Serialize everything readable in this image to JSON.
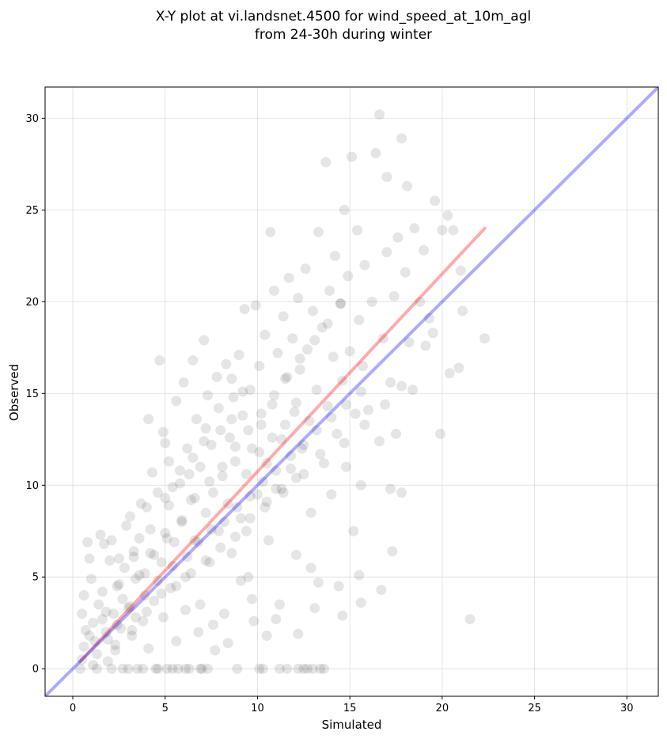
{
  "chart_data": {
    "type": "scatter",
    "title_lines": [
      "X-Y plot at vi.landsnet.4500 for wind_speed_at_10m_agl",
      "from 24-30h during winter"
    ],
    "xlabel": "Simulated",
    "ylabel": "Observed",
    "xlim": [
      -1.5,
      31.7
    ],
    "ylim": [
      -1.5,
      31.7
    ],
    "xticks": [
      0,
      5,
      10,
      15,
      20,
      25,
      30
    ],
    "yticks": [
      0,
      5,
      10,
      15,
      20,
      25,
      30
    ],
    "grid": true,
    "legend": "none",
    "point_color": "#000000",
    "point_opacity": 0.1,
    "series": [
      {
        "points": [
          [
            0.5,
            0.5
          ],
          [
            0.6,
            1.2
          ],
          [
            0.7,
            2.1
          ],
          [
            0.5,
            3.0
          ],
          [
            0.6,
            4.0
          ],
          [
            0.8,
            6.9
          ],
          [
            0.9,
            6.0
          ],
          [
            1.0,
            4.9
          ],
          [
            1.1,
            2.5
          ],
          [
            1.2,
            1.5
          ],
          [
            1.3,
            0.8
          ],
          [
            1.4,
            3.5
          ],
          [
            1.5,
            7.3
          ],
          [
            1.6,
            4.2
          ],
          [
            1.7,
            6.8
          ],
          [
            1.8,
            2.0
          ],
          [
            1.9,
            0.4
          ],
          [
            2.0,
            5.9
          ],
          [
            2.1,
            7.0
          ],
          [
            2.2,
            3.0
          ],
          [
            2.3,
            1.0
          ],
          [
            2.4,
            4.5
          ],
          [
            2.5,
            6.0
          ],
          [
            2.6,
            2.2
          ],
          [
            2.7,
            0.0
          ],
          [
            2.8,
            5.5
          ],
          [
            2.9,
            7.8
          ],
          [
            3.0,
            3.3
          ],
          [
            3.1,
            8.3
          ],
          [
            3.2,
            1.8
          ],
          [
            3.3,
            6.4
          ],
          [
            3.4,
            4.9
          ],
          [
            3.5,
            0.0
          ],
          [
            3.6,
            7.1
          ],
          [
            3.7,
            9.0
          ],
          [
            3.8,
            2.6
          ],
          [
            3.9,
            5.2
          ],
          [
            4.0,
            8.8
          ],
          [
            4.1,
            13.6
          ],
          [
            4.2,
            6.3
          ],
          [
            4.3,
            10.7
          ],
          [
            4.4,
            3.7
          ],
          [
            4.5,
            0.0
          ],
          [
            4.6,
            9.6
          ],
          [
            4.7,
            16.8
          ],
          [
            4.8,
            5.8
          ],
          [
            4.9,
            12.9
          ],
          [
            5.0,
            7.4
          ],
          [
            5.0,
            12.3
          ],
          [
            5.1,
            0.0
          ],
          [
            5.2,
            11.3
          ],
          [
            5.3,
            4.4
          ],
          [
            5.4,
            9.9
          ],
          [
            5.5,
            6.9
          ],
          [
            5.6,
            14.6
          ],
          [
            5.7,
            0.0
          ],
          [
            5.8,
            10.8
          ],
          [
            5.9,
            8.0
          ],
          [
            6.0,
            15.6
          ],
          [
            6.1,
            3.2
          ],
          [
            6.2,
            12.0
          ],
          [
            6.3,
            0.0
          ],
          [
            6.4,
            9.2
          ],
          [
            6.5,
            16.8
          ],
          [
            6.6,
            7.0
          ],
          [
            6.7,
            13.6
          ],
          [
            6.8,
            2.0
          ],
          [
            6.9,
            11.0
          ],
          [
            7.0,
            0.0
          ],
          [
            7.1,
            17.9
          ],
          [
            7.2,
            8.5
          ],
          [
            7.3,
            14.9
          ],
          [
            7.4,
            5.8
          ],
          [
            7.5,
            12.2
          ],
          [
            7.6,
            9.6
          ],
          [
            7.7,
            1.0
          ],
          [
            7.8,
            15.9
          ],
          [
            7.9,
            7.5
          ],
          [
            8.0,
            13.0
          ],
          [
            8.1,
            10.5
          ],
          [
            8.2,
            3.0
          ],
          [
            8.3,
            16.6
          ],
          [
            8.4,
            9.0
          ],
          [
            8.5,
            12.6
          ],
          [
            8.6,
            6.3
          ],
          [
            8.7,
            14.8
          ],
          [
            8.8,
            11.3
          ],
          [
            8.9,
            0.0
          ],
          [
            9.0,
            17.1
          ],
          [
            9.1,
            8.2
          ],
          [
            9.2,
            13.8
          ],
          [
            9.3,
            19.6
          ],
          [
            9.4,
            10.6
          ],
          [
            9.5,
            5.0
          ],
          [
            9.6,
            15.2
          ],
          [
            9.7,
            12.0
          ],
          [
            9.8,
            2.6
          ],
          [
            9.9,
            19.8
          ],
          [
            10.0,
            9.5
          ],
          [
            10.1,
            16.5
          ],
          [
            10.2,
            13.3
          ],
          [
            10.3,
            0.0
          ],
          [
            10.4,
            18.2
          ],
          [
            10.5,
            11.2
          ],
          [
            10.6,
            7.0
          ],
          [
            10.7,
            23.8
          ],
          [
            10.8,
            14.4
          ],
          [
            10.9,
            20.6
          ],
          [
            11.0,
            9.8
          ],
          [
            11.1,
            17.2
          ],
          [
            11.2,
            3.5
          ],
          [
            11.3,
            12.5
          ],
          [
            11.4,
            19.2
          ],
          [
            11.5,
            15.8
          ],
          [
            11.6,
            0.0
          ],
          [
            11.7,
            21.3
          ],
          [
            11.8,
            10.9
          ],
          [
            11.9,
            18.0
          ],
          [
            12.0,
            14.0
          ],
          [
            12.1,
            6.2
          ],
          [
            12.2,
            20.2
          ],
          [
            12.3,
            16.3
          ],
          [
            12.4,
            12.0
          ],
          [
            12.5,
            0.0
          ],
          [
            12.6,
            21.8
          ],
          [
            12.7,
            17.4
          ],
          [
            12.8,
            13.5
          ],
          [
            12.9,
            8.5
          ],
          [
            13.0,
            19.5
          ],
          [
            13.1,
            3.3
          ],
          [
            13.2,
            15.2
          ],
          [
            13.3,
            23.8
          ],
          [
            13.4,
            11.7
          ],
          [
            13.5,
            18.6
          ],
          [
            13.6,
            0.0
          ],
          [
            13.7,
            27.6
          ],
          [
            13.8,
            14.3
          ],
          [
            13.9,
            20.6
          ],
          [
            14.0,
            9.5
          ],
          [
            14.1,
            17.0
          ],
          [
            14.2,
            22.5
          ],
          [
            14.3,
            12.8
          ],
          [
            14.4,
            4.5
          ],
          [
            14.5,
            19.9
          ],
          [
            14.6,
            15.7
          ],
          [
            14.7,
            25.0
          ],
          [
            14.8,
            11.0
          ],
          [
            14.9,
            21.4
          ],
          [
            15.0,
            17.3
          ],
          [
            15.1,
            27.9
          ],
          [
            15.2,
            7.5
          ],
          [
            15.3,
            13.9
          ],
          [
            15.4,
            23.9
          ],
          [
            15.5,
            19.0
          ],
          [
            15.6,
            10.0
          ],
          [
            15.7,
            16.5
          ],
          [
            15.8,
            22.0
          ],
          [
            16.0,
            14.1
          ],
          [
            16.2,
            20.0
          ],
          [
            16.4,
            28.1
          ],
          [
            16.6,
            12.4
          ],
          [
            16.6,
            30.2
          ],
          [
            16.8,
            18.0
          ],
          [
            17.0,
            22.7
          ],
          [
            17.0,
            26.8
          ],
          [
            17.2,
            15.6
          ],
          [
            17.2,
            9.8
          ],
          [
            17.3,
            6.4
          ],
          [
            17.4,
            20.3
          ],
          [
            17.5,
            12.8
          ],
          [
            17.6,
            23.5
          ],
          [
            17.8,
            28.9
          ],
          [
            17.8,
            9.6
          ],
          [
            18.0,
            21.6
          ],
          [
            18.1,
            26.3
          ],
          [
            18.2,
            17.8
          ],
          [
            18.4,
            15.2
          ],
          [
            18.5,
            24.0
          ],
          [
            18.8,
            20.0
          ],
          [
            19.0,
            22.8
          ],
          [
            19.3,
            19.1
          ],
          [
            19.5,
            18.3
          ],
          [
            19.6,
            25.5
          ],
          [
            19.9,
            12.8
          ],
          [
            20.0,
            23.9
          ],
          [
            20.3,
            24.7
          ],
          [
            20.4,
            16.1
          ],
          [
            20.6,
            23.9
          ],
          [
            20.9,
            16.4
          ],
          [
            21.0,
            21.7
          ],
          [
            21.1,
            19.5
          ],
          [
            21.5,
            2.7
          ],
          [
            22.3,
            18.0
          ],
          [
            16.7,
            4.3
          ],
          [
            15.5,
            5.1
          ],
          [
            15.6,
            3.6
          ],
          [
            14.6,
            2.9
          ],
          [
            13.3,
            4.7
          ],
          [
            12.9,
            5.5
          ],
          [
            12.2,
            1.9
          ],
          [
            11.0,
            2.7
          ],
          [
            10.5,
            1.8
          ],
          [
            9.7,
            3.8
          ],
          [
            9.1,
            4.8
          ],
          [
            8.4,
            1.4
          ],
          [
            7.6,
            2.4
          ],
          [
            6.9,
            3.5
          ],
          [
            6.1,
            5.0
          ],
          [
            5.6,
            1.5
          ],
          [
            4.9,
            2.8
          ],
          [
            4.1,
            1.1
          ],
          [
            3.4,
            2.8
          ],
          [
            2.7,
            3.8
          ],
          [
            1.9,
            1.6
          ],
          [
            1.1,
            0.2
          ],
          [
            0.4,
            0.0
          ],
          [
            1.3,
            0.0
          ],
          [
            2.1,
            0.0
          ],
          [
            3.0,
            0.0
          ],
          [
            3.8,
            0.0
          ],
          [
            4.6,
            0.0
          ],
          [
            5.4,
            0.0
          ],
          [
            6.1,
            0.0
          ],
          [
            6.9,
            0.0
          ],
          [
            7.3,
            0.0
          ],
          [
            10.1,
            0.0
          ],
          [
            11.2,
            0.0
          ],
          [
            12.2,
            0.0
          ],
          [
            12.7,
            0.0
          ],
          [
            13.0,
            0.0
          ],
          [
            13.4,
            0.0
          ],
          [
            2.4,
            2.4
          ],
          [
            3.1,
            3.4
          ],
          [
            3.9,
            4.0
          ],
          [
            4.6,
            4.8
          ],
          [
            5.4,
            5.6
          ],
          [
            6.2,
            6.1
          ],
          [
            6.8,
            6.9
          ],
          [
            7.5,
            7.6
          ],
          [
            8.2,
            8.0
          ],
          [
            8.9,
            8.8
          ],
          [
            9.6,
            9.4
          ],
          [
            10.3,
            10.2
          ],
          [
            11.0,
            10.8
          ],
          [
            11.8,
            11.6
          ],
          [
            12.5,
            12.2
          ],
          [
            13.2,
            13.0
          ],
          [
            14.0,
            13.7
          ],
          [
            14.8,
            14.4
          ],
          [
            15.6,
            15.1
          ],
          [
            4.4,
            6.2
          ],
          [
            5.1,
            7.1
          ],
          [
            5.9,
            8.1
          ],
          [
            6.6,
            9.3
          ],
          [
            7.4,
            10.2
          ],
          [
            8.1,
            11.0
          ],
          [
            8.8,
            12.1
          ],
          [
            9.5,
            13.0
          ],
          [
            10.2,
            13.9
          ],
          [
            10.9,
            14.9
          ],
          [
            11.6,
            15.9
          ],
          [
            12.3,
            16.9
          ],
          [
            13.1,
            17.9
          ],
          [
            13.8,
            18.8
          ],
          [
            14.5,
            19.9
          ],
          [
            3.6,
            5.1
          ],
          [
            5.2,
            8.9
          ],
          [
            6.3,
            10.6
          ],
          [
            7.1,
            12.4
          ],
          [
            8.6,
            13.6
          ],
          [
            9.2,
            15.1
          ],
          [
            10.1,
            11.8
          ],
          [
            10.8,
            12.6
          ],
          [
            11.5,
            13.3
          ],
          [
            12.1,
            14.5
          ],
          [
            9.4,
            7.5
          ],
          [
            10.4,
            8.8
          ],
          [
            11.4,
            9.6
          ],
          [
            12.5,
            10.6
          ],
          [
            13.6,
            11.2
          ],
          [
            14.7,
            12.3
          ],
          [
            15.8,
            13.3
          ],
          [
            16.9,
            14.4
          ],
          [
            17.8,
            15.4
          ],
          [
            19.1,
            17.6
          ],
          [
            1.8,
            3.1
          ],
          [
            2.5,
            4.6
          ],
          [
            3.3,
            6.1
          ],
          [
            4.2,
            7.6
          ],
          [
            5.0,
            9.3
          ],
          [
            5.8,
            10.1
          ],
          [
            6.5,
            11.5
          ],
          [
            7.2,
            13.1
          ],
          [
            7.9,
            14.2
          ],
          [
            8.6,
            15.8
          ],
          [
            0.9,
            1.8
          ],
          [
            1.6,
            2.7
          ],
          [
            2.3,
            1.3
          ],
          [
            3.2,
            2.1
          ],
          [
            4.0,
            3.1
          ],
          [
            4.8,
            4.1
          ],
          [
            5.6,
            4.5
          ],
          [
            6.4,
            5.2
          ],
          [
            7.2,
            5.9
          ],
          [
            8.0,
            6.6
          ],
          [
            8.8,
            7.2
          ],
          [
            9.6,
            8.2
          ],
          [
            10.5,
            9.1
          ],
          [
            11.3,
            9.8
          ],
          [
            12.1,
            10.4
          ]
        ]
      }
    ],
    "lines": [
      {
        "name": "",
        "color": "#ff0000",
        "opacity": 0.33,
        "points": [
          [
            0.4,
            0.4
          ],
          [
            22.3,
            24.0
          ]
        ]
      },
      {
        "name": "",
        "color": "#0000ff",
        "opacity": 0.33,
        "points": [
          [
            -1.5,
            -1.5
          ],
          [
            31.7,
            31.7
          ]
        ]
      }
    ]
  }
}
